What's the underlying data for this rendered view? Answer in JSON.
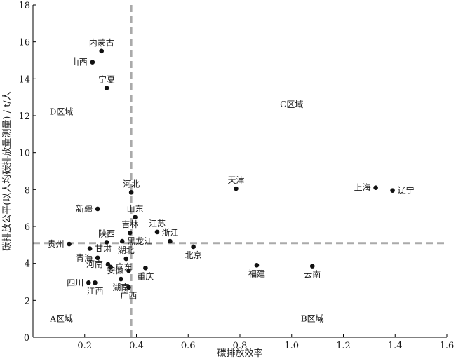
{
  "chart_data": {
    "type": "scatter",
    "xlabel": "碳排放效率",
    "ylabel": "碳排放公平(以人均碳排放量测量) / t/人",
    "xlim": [
      0,
      1.6
    ],
    "ylim": [
      0,
      18
    ],
    "xticks": [
      0.2,
      0.4,
      0.6,
      0.8,
      1.0,
      1.2,
      1.4,
      1.6
    ],
    "yticks": [
      0,
      2,
      4,
      6,
      8,
      10,
      12,
      14,
      16,
      18
    ],
    "xtick_labels": [
      "0.2",
      "0.4",
      "0.6",
      "0.8",
      "1.0",
      "1.2",
      "1.4",
      "1.6"
    ],
    "ytick_labels": [
      "0",
      "2",
      "4",
      "6",
      "8",
      "10",
      "12",
      "14",
      "16",
      "18"
    ],
    "origin_label": "0",
    "grid": false,
    "reference_lines": {
      "x": 0.38,
      "y": 5.1,
      "style": "dashed",
      "color": "#aaaaaa"
    },
    "regions": [
      {
        "name": "D区域",
        "x": 0.11,
        "y": 12.2
      },
      {
        "name": "C区域",
        "x": 1.0,
        "y": 12.6
      },
      {
        "name": "A区域",
        "x": 0.11,
        "y": 1.0
      },
      {
        "name": "B区域",
        "x": 1.08,
        "y": 1.0
      }
    ],
    "points": [
      {
        "label": "内蒙古",
        "x": 0.265,
        "y": 15.5,
        "label_pos": "above"
      },
      {
        "label": "山西",
        "x": 0.23,
        "y": 14.9,
        "label_pos": "left"
      },
      {
        "label": "宁夏",
        "x": 0.285,
        "y": 13.5,
        "label_pos": "above"
      },
      {
        "label": "天津",
        "x": 0.785,
        "y": 8.05,
        "label_pos": "above"
      },
      {
        "label": "上海",
        "x": 1.325,
        "y": 8.1,
        "label_pos": "left"
      },
      {
        "label": "辽宁",
        "x": 1.39,
        "y": 7.95,
        "label_pos": "right"
      },
      {
        "label": "河北",
        "x": 0.38,
        "y": 7.85,
        "label_pos": "above"
      },
      {
        "label": "新疆",
        "x": 0.25,
        "y": 6.95,
        "label_pos": "left"
      },
      {
        "label": "山东",
        "x": 0.395,
        "y": 6.5,
        "label_pos": "above"
      },
      {
        "label": "江苏",
        "x": 0.48,
        "y": 5.7,
        "label_pos": "above"
      },
      {
        "label": "吉林",
        "x": 0.375,
        "y": 5.65,
        "label_pos": "above"
      },
      {
        "label": "浙江",
        "x": 0.53,
        "y": 5.2,
        "label_pos": "above"
      },
      {
        "label": "陕西",
        "x": 0.285,
        "y": 5.15,
        "label_pos": "above"
      },
      {
        "label": "黑龙江",
        "x": 0.345,
        "y": 5.2,
        "label_pos": "right"
      },
      {
        "label": "贵州",
        "x": 0.14,
        "y": 5.05,
        "label_pos": "left"
      },
      {
        "label": "北京",
        "x": 0.62,
        "y": 4.9,
        "label_pos": "below"
      },
      {
        "label": "甘肃",
        "x": 0.22,
        "y": 4.8,
        "label_pos": "right"
      },
      {
        "label": "青海",
        "x": 0.25,
        "y": 4.3,
        "label_pos": "left"
      },
      {
        "label": "湖北",
        "x": 0.36,
        "y": 4.25,
        "label_pos": "above"
      },
      {
        "label": "河南",
        "x": 0.29,
        "y": 3.95,
        "label_pos": "left"
      },
      {
        "label": "广东",
        "x": 0.3,
        "y": 3.8,
        "label_pos": "right"
      },
      {
        "label": "福建",
        "x": 0.865,
        "y": 3.9,
        "label_pos": "below"
      },
      {
        "label": "云南",
        "x": 1.08,
        "y": 3.85,
        "label_pos": "below"
      },
      {
        "label": "重庆",
        "x": 0.435,
        "y": 3.75,
        "label_pos": "below"
      },
      {
        "label": "安徽",
        "x": 0.37,
        "y": 3.6,
        "label_pos": "left"
      },
      {
        "label": "湖南",
        "x": 0.34,
        "y": 3.15,
        "label_pos": "below"
      },
      {
        "label": "四川",
        "x": 0.215,
        "y": 2.95,
        "label_pos": "left"
      },
      {
        "label": "江西",
        "x": 0.24,
        "y": 2.95,
        "label_pos": "below"
      },
      {
        "label": "广西",
        "x": 0.37,
        "y": 2.7,
        "label_pos": "below"
      }
    ]
  }
}
